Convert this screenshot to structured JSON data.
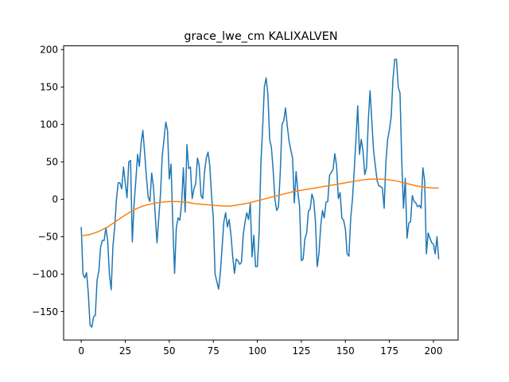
{
  "chart_data": {
    "type": "line",
    "title": "grace_lwe_cm KALIXALVEN",
    "xlabel": "",
    "ylabel": "",
    "xlim": [
      -10,
      214
    ],
    "ylim": [
      -188,
      205
    ],
    "x_ticks": [
      0,
      25,
      50,
      75,
      100,
      125,
      150,
      175,
      200
    ],
    "y_ticks": [
      -150,
      -100,
      -50,
      0,
      50,
      100,
      150,
      200
    ],
    "grid": false,
    "legend": "none",
    "series": [
      {
        "color": "#1f77b4",
        "x": [
          0,
          1,
          2,
          3,
          4,
          5,
          6,
          7,
          8,
          9,
          10,
          11,
          12,
          13,
          14,
          15,
          16,
          17,
          18,
          19,
          20,
          21,
          22,
          23,
          24,
          25,
          26,
          27,
          28,
          29,
          30,
          31,
          32,
          33,
          34,
          35,
          36,
          37,
          38,
          39,
          40,
          41,
          42,
          43,
          44,
          45,
          46,
          47,
          48,
          49,
          50,
          51,
          52,
          53,
          54,
          55,
          56,
          57,
          58,
          59,
          60,
          61,
          62,
          63,
          64,
          65,
          66,
          67,
          68,
          69,
          70,
          71,
          72,
          73,
          74,
          75,
          76,
          77,
          78,
          79,
          80,
          81,
          82,
          83,
          84,
          85,
          86,
          87,
          88,
          89,
          90,
          91,
          92,
          93,
          94,
          95,
          96,
          97,
          98,
          99,
          100,
          101,
          102,
          103,
          104,
          105,
          106,
          107,
          108,
          109,
          110,
          111,
          112,
          113,
          114,
          115,
          116,
          117,
          118,
          119,
          120,
          121,
          122,
          123,
          124,
          125,
          126,
          127,
          128,
          129,
          130,
          131,
          132,
          133,
          134,
          135,
          136,
          137,
          138,
          139,
          140,
          141,
          142,
          143,
          144,
          145,
          146,
          147,
          148,
          149,
          150,
          151,
          152,
          153,
          154,
          155,
          156,
          157,
          158,
          159,
          160,
          161,
          162,
          163,
          164,
          165,
          166,
          167,
          168,
          169,
          170,
          171,
          172,
          173,
          174,
          175,
          176,
          177,
          178,
          179,
          180,
          181,
          182,
          183,
          184,
          185,
          186,
          187,
          188,
          189,
          190,
          191,
          192,
          193,
          194,
          195,
          196,
          197,
          198,
          199,
          200,
          201,
          202,
          203
        ],
        "y": [
          -37,
          -100,
          -105,
          -98,
          -125,
          -168,
          -171,
          -157,
          -155,
          -108,
          -96,
          -64,
          -55,
          -55,
          -38,
          -55,
          -100,
          -121,
          -63,
          -37,
          0,
          22,
          22,
          14,
          43,
          22,
          2,
          50,
          52,
          -57,
          -7,
          25,
          60,
          44,
          75,
          92,
          62,
          30,
          3,
          -3,
          35,
          17,
          -20,
          -58,
          -26,
          7,
          58,
          80,
          103,
          92,
          27,
          47,
          -33,
          -99,
          -38,
          -25,
          -28,
          -5,
          42,
          -17,
          73,
          41,
          43,
          1,
          14,
          21,
          55,
          45,
          5,
          1,
          36,
          55,
          63,
          45,
          5,
          -25,
          -100,
          -110,
          -120,
          -98,
          -64,
          -30,
          -18,
          -37,
          -27,
          -47,
          -76,
          -99,
          -80,
          -82,
          -87,
          -84,
          -47,
          -31,
          -18,
          -27,
          -6,
          -77,
          -48,
          -90,
          -90,
          -45,
          47,
          95,
          150,
          162,
          140,
          80,
          69,
          38,
          0,
          -15,
          -10,
          35,
          100,
          105,
          122,
          98,
          78,
          66,
          55,
          -5,
          37,
          10,
          -10,
          -82,
          -80,
          -53,
          -45,
          -16,
          -13,
          7,
          -1,
          -30,
          -90,
          -72,
          -35,
          -15,
          -25,
          -4,
          -3,
          32,
          36,
          40,
          61,
          45,
          1,
          9,
          -25,
          -28,
          -40,
          -73,
          -76,
          -26,
          0,
          38,
          80,
          125,
          60,
          80,
          65,
          33,
          42,
          105,
          145,
          105,
          65,
          45,
          25,
          18,
          17,
          15,
          -12,
          50,
          80,
          93,
          110,
          160,
          187,
          187,
          150,
          142,
          52,
          -12,
          28,
          -52,
          -32,
          -30,
          5,
          -3,
          -5,
          -10,
          -8,
          -12,
          42,
          25,
          -73,
          -45,
          -52,
          -58,
          -60,
          -73,
          -50,
          -80
        ]
      },
      {
        "color": "#ff7f0e",
        "x": [
          0,
          5,
          10,
          15,
          20,
          25,
          30,
          35,
          40,
          45,
          50,
          55,
          60,
          65,
          70,
          75,
          80,
          85,
          90,
          95,
          100,
          105,
          110,
          115,
          120,
          125,
          130,
          135,
          140,
          145,
          150,
          155,
          160,
          165,
          170,
          175,
          180,
          185,
          190,
          195,
          200,
          203
        ],
        "y": [
          -49,
          -47,
          -43,
          -37,
          -29,
          -21,
          -14,
          -9,
          -6,
          -4,
          -3,
          -3,
          -4,
          -6,
          -7,
          -8,
          -9,
          -9,
          -7,
          -5,
          -2,
          1,
          4,
          7,
          10,
          12,
          14,
          16,
          18,
          20,
          22,
          24,
          26,
          27,
          27,
          26,
          24,
          21,
          18,
          16,
          15,
          15
        ]
      }
    ]
  }
}
